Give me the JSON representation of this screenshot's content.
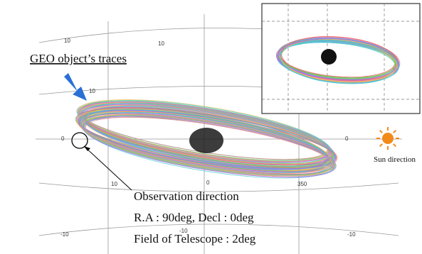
{
  "title_label": "GEO object’s traces",
  "observation": {
    "heading": "Observation direction",
    "coords": "R.A : 90deg, Decl : 0deg",
    "fov": "Field of Telescope : 2deg"
  },
  "sun_label": "Sun direction",
  "grid_labels": [
    "10",
    "10",
    "10",
    "0",
    "0",
    "10",
    "0",
    "350",
    "-10",
    "-10",
    "-10"
  ]
}
